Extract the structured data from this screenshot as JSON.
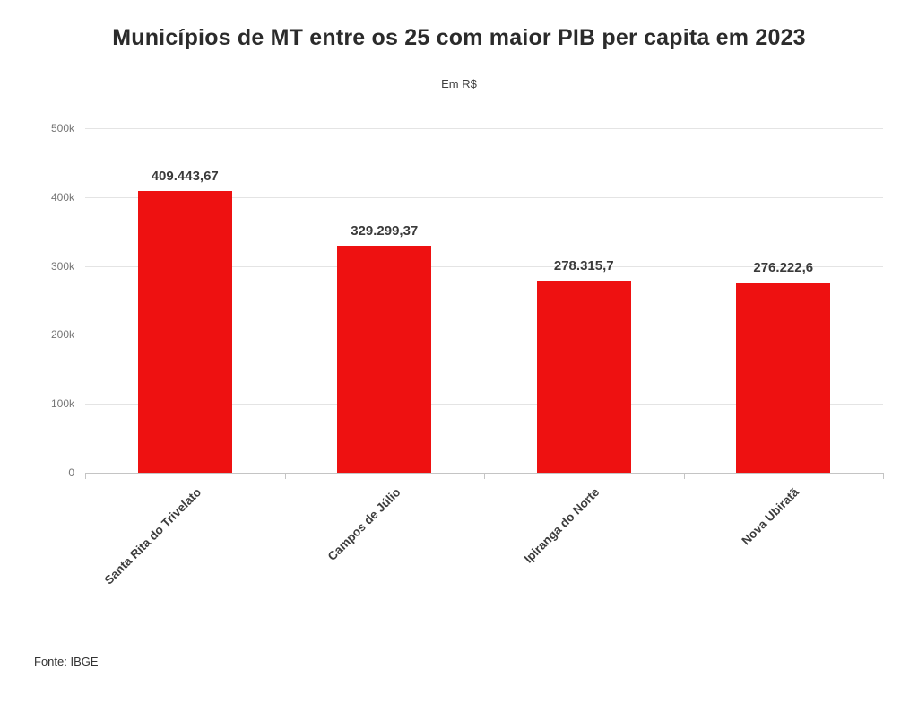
{
  "chart_data": {
    "type": "bar",
    "title": "Municípios de MT entre os 25 com maior PIB per capita em 2023",
    "subtitle": "Em R$",
    "source": "Fonte: IBGE",
    "categories": [
      "Santa Rita do Trivelato",
      "Campos de Júlio",
      "Ipiranga do Norte",
      "Nova Ubiratã"
    ],
    "values": [
      409443.67,
      329299.37,
      278315.7,
      276222.6
    ],
    "value_labels": [
      "409.443,67",
      "329.299,37",
      "278.315,7",
      "276.222,6"
    ],
    "bar_color": "#ee1111",
    "xlabel": "",
    "ylabel": "",
    "ylim": [
      0,
      500000
    ],
    "yticks": [
      0,
      100000,
      200000,
      300000,
      400000,
      500000
    ],
    "ytick_labels": [
      "0",
      "100k",
      "200k",
      "300k",
      "400k",
      "500k"
    ],
    "grid": "horizontal",
    "legend": "none"
  }
}
